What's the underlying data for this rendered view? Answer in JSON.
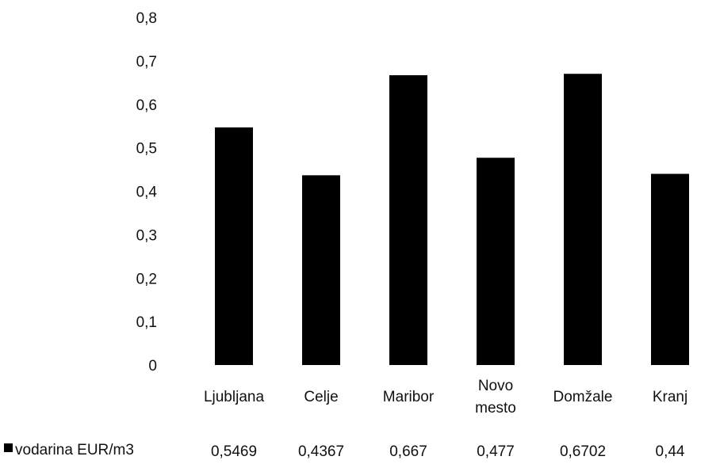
{
  "chart_data": {
    "type": "bar",
    "categories": [
      [
        "Ljubljana"
      ],
      [
        "Celje"
      ],
      [
        "Maribor"
      ],
      [
        "Novo",
        "mesto"
      ],
      [
        "Domžale"
      ],
      [
        "Kranj"
      ]
    ],
    "series": [
      {
        "name": "vodarina EUR/m3",
        "values": [
          0.5469,
          0.4367,
          0.667,
          0.477,
          0.6702,
          0.44
        ],
        "value_labels": [
          "0,5469",
          "0,4367",
          "0,667",
          "0,477",
          "0,6702",
          "0,44"
        ],
        "color": "#000000"
      }
    ],
    "y_ticks": [
      "0",
      "0,1",
      "0,2",
      "0,3",
      "0,4",
      "0,5",
      "0,6",
      "0,7",
      "0,8"
    ],
    "ylim": [
      0,
      0.8
    ],
    "grid": false,
    "legend": "bottom-left data table"
  }
}
